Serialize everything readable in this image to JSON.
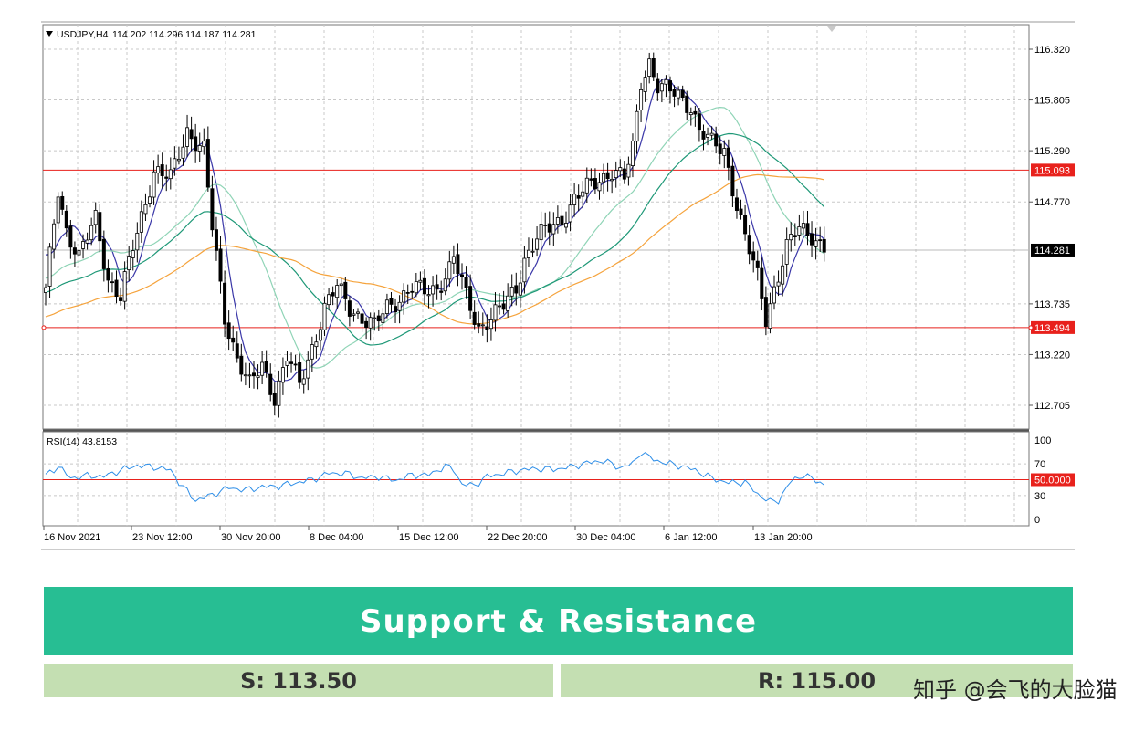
{
  "chart_data": {
    "type": "candlestick",
    "symbol_header": "USDJPY,H4",
    "ohlc_header": "114.202 114.296 114.187 114.281",
    "ylim": [
      112.35,
      116.55
    ],
    "y_ticks": [
      "116.320",
      "115.805",
      "115.290",
      "114.770",
      "113.735",
      "113.220",
      "112.705"
    ],
    "x_ticks": [
      "16 Nov 2021",
      "23 Nov 12:00",
      "30 Nov 20:00",
      "8 Dec 04:00",
      "15 Dec 12:00",
      "22 Dec 20:00",
      "30 Dec 04:00",
      "6 Jan 12:00",
      "13 Jan 20:00"
    ],
    "levels": [
      {
        "label": "115.093",
        "value": 115.093,
        "color": "#e8211c"
      },
      {
        "label": "113.494",
        "value": 113.494,
        "color": "#e8211c"
      }
    ],
    "current_price": {
      "label": "114.281",
      "value": 114.281
    },
    "price_anchors": [
      [
        0,
        113.85
      ],
      [
        3,
        114.9
      ],
      [
        5,
        114.5
      ],
      [
        8,
        114.2
      ],
      [
        12,
        114.6
      ],
      [
        15,
        114.0
      ],
      [
        18,
        113.8
      ],
      [
        21,
        114.3
      ],
      [
        26,
        115.1
      ],
      [
        30,
        115.0
      ],
      [
        34,
        115.5
      ],
      [
        38,
        115.3
      ],
      [
        40,
        114.5
      ],
      [
        43,
        113.6
      ],
      [
        46,
        113.2
      ],
      [
        49,
        112.9
      ],
      [
        52,
        113.1
      ],
      [
        55,
        112.8
      ],
      [
        58,
        113.2
      ],
      [
        61,
        112.9
      ],
      [
        64,
        113.3
      ],
      [
        67,
        113.7
      ],
      [
        70,
        113.9
      ],
      [
        73,
        113.7
      ],
      [
        76,
        113.6
      ],
      [
        79,
        113.5
      ],
      [
        82,
        113.7
      ],
      [
        85,
        113.8
      ],
      [
        88,
        113.9
      ],
      [
        91,
        113.85
      ],
      [
        94,
        113.9
      ],
      [
        97,
        114.1
      ],
      [
        98,
        114.2
      ],
      [
        101,
        113.8
      ],
      [
        104,
        113.5
      ],
      [
        107,
        113.6
      ],
      [
        110,
        113.7
      ],
      [
        113,
        113.9
      ],
      [
        115,
        114.2
      ],
      [
        118,
        114.4
      ],
      [
        121,
        114.5
      ],
      [
        124,
        114.6
      ],
      [
        127,
        114.8
      ],
      [
        130,
        114.9
      ],
      [
        133,
        115.0
      ],
      [
        136,
        115.1
      ],
      [
        139,
        115.0
      ],
      [
        141,
        115.3
      ],
      [
        143,
        116.0
      ],
      [
        145,
        116.2
      ],
      [
        147,
        115.95
      ],
      [
        149,
        115.9
      ],
      [
        152,
        115.85
      ],
      [
        155,
        115.75
      ],
      [
        157,
        115.5
      ],
      [
        160,
        115.35
      ],
      [
        163,
        115.3
      ],
      [
        166,
        114.75
      ],
      [
        168,
        114.4
      ],
      [
        171,
        114.0
      ],
      [
        173,
        113.6
      ],
      [
        175,
        113.9
      ],
      [
        178,
        114.3
      ],
      [
        181,
        114.5
      ],
      [
        184,
        114.45
      ],
      [
        187,
        114.3
      ]
    ],
    "rsi": {
      "label": "RSI(14) 43.8153",
      "ylim": [
        0,
        100
      ],
      "ticks": [
        "100",
        "70",
        "30",
        "0"
      ],
      "level_label": "50.0000",
      "level": 50,
      "anchors": [
        [
          0,
          55
        ],
        [
          3,
          67
        ],
        [
          6,
          52
        ],
        [
          10,
          55
        ],
        [
          14,
          54
        ],
        [
          18,
          62
        ],
        [
          22,
          68
        ],
        [
          26,
          66
        ],
        [
          30,
          62
        ],
        [
          32,
          47
        ],
        [
          34,
          35
        ],
        [
          36,
          24
        ],
        [
          40,
          31
        ],
        [
          44,
          40
        ],
        [
          48,
          37
        ],
        [
          52,
          41
        ],
        [
          56,
          42
        ],
        [
          60,
          46
        ],
        [
          64,
          50
        ],
        [
          68,
          58
        ],
        [
          72,
          58
        ],
        [
          76,
          52
        ],
        [
          80,
          54
        ],
        [
          84,
          49
        ],
        [
          88,
          56
        ],
        [
          92,
          56
        ],
        [
          96,
          67
        ],
        [
          98,
          63
        ],
        [
          100,
          44
        ],
        [
          103,
          43
        ],
        [
          106,
          54
        ],
        [
          110,
          58
        ],
        [
          114,
          62
        ],
        [
          118,
          64
        ],
        [
          122,
          63
        ],
        [
          126,
          66
        ],
        [
          130,
          71
        ],
        [
          134,
          74
        ],
        [
          138,
          65
        ],
        [
          141,
          70
        ],
        [
          143,
          85
        ],
        [
          145,
          78
        ],
        [
          148,
          72
        ],
        [
          152,
          68
        ],
        [
          156,
          62
        ],
        [
          160,
          52
        ],
        [
          164,
          46
        ],
        [
          168,
          47
        ],
        [
          171,
          32
        ],
        [
          174,
          22
        ],
        [
          176,
          24
        ],
        [
          179,
          48
        ],
        [
          182,
          56
        ],
        [
          185,
          49
        ],
        [
          187,
          44
        ]
      ]
    },
    "grid": true
  },
  "info": {
    "title": "Support & Resistance",
    "support": "S: 113.50",
    "resistance": "R: 115.00",
    "watermark": "知乎 @会飞的大脸猫"
  },
  "colors": {
    "banner": "#27be93",
    "sr_box": "#c4dfb2",
    "level_line": "#e8211c",
    "ma_fast": "#3a37a8",
    "ma_mid": "#8fd4b6",
    "ma_slow": "#1e9877",
    "ma_long": "#f5a33c"
  }
}
